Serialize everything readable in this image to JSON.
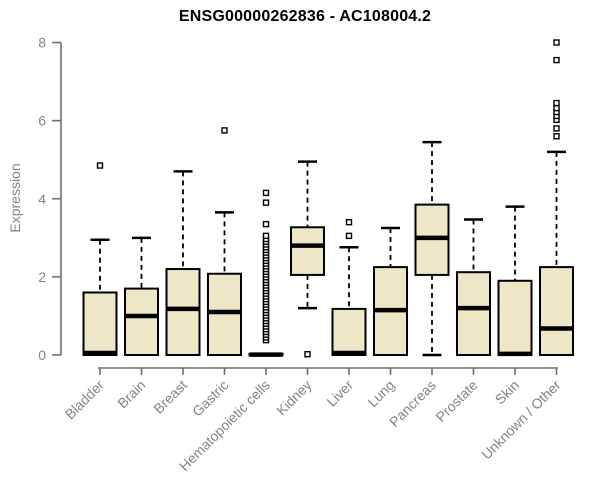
{
  "chart_data": {
    "type": "boxplot",
    "title": "ENSG00000262836 - AC108004.2",
    "ylabel": "Expression",
    "xlabel": "",
    "ylim": [
      0,
      8
    ],
    "yticks": [
      0,
      2,
      4,
      6,
      8
    ],
    "grid": false,
    "legend": "none",
    "colors": {
      "box_fill": "#EDE7C8",
      "box_stroke": "#000000",
      "whisker": "#000000",
      "median": "#000000",
      "outlier_fill": "#FFFFFF",
      "axis_line": "#6F6F6F",
      "tick_label": "#858585",
      "title": "#000000",
      "background": "#FFFFFF"
    },
    "categories": [
      "Bladder",
      "Brain",
      "Breast",
      "Gastric",
      "Hematopoietic cells",
      "Kidney",
      "Liver",
      "Lung",
      "Pancreas",
      "Prostate",
      "Skin",
      "Unknown / Other"
    ],
    "series": [
      {
        "category": "Bladder",
        "low": 0,
        "q1": 0,
        "median": 0.05,
        "q3": 1.6,
        "high": 2.95,
        "outliers": [
          4.85
        ]
      },
      {
        "category": "Brain",
        "low": 0,
        "q1": 0,
        "median": 1.0,
        "q3": 1.7,
        "high": 3.0,
        "outliers": []
      },
      {
        "category": "Breast",
        "low": 0,
        "q1": 0,
        "median": 1.18,
        "q3": 2.2,
        "high": 4.7,
        "outliers": []
      },
      {
        "category": "Gastric",
        "low": 0,
        "q1": 0,
        "median": 1.1,
        "q3": 2.08,
        "high": 3.65,
        "outliers": [
          5.75
        ]
      },
      {
        "category": "Hematopoietic cells",
        "low": 0,
        "q1": 0,
        "median": 0.01,
        "q3": 0.03,
        "high": 0.03,
        "outliers": [
          0.38,
          0.45,
          0.52,
          0.59,
          0.66,
          0.73,
          0.8,
          0.87,
          0.94,
          1.01,
          1.08,
          1.15,
          1.22,
          1.29,
          1.36,
          1.43,
          1.5,
          1.57,
          1.64,
          1.71,
          1.78,
          1.85,
          1.92,
          1.99,
          2.06,
          2.13,
          2.2,
          2.27,
          2.34,
          2.41,
          2.48,
          2.55,
          2.62,
          2.69,
          2.76,
          2.83,
          2.9,
          2.97,
          3.05,
          3.35,
          3.9,
          4.15
        ]
      },
      {
        "category": "Kidney",
        "low": 1.2,
        "q1": 2.05,
        "median": 2.8,
        "q3": 3.27,
        "high": 4.95,
        "outliers": [
          0.02
        ]
      },
      {
        "category": "Liver",
        "low": 0,
        "q1": 0,
        "median": 0.05,
        "q3": 1.18,
        "high": 2.76,
        "outliers": [
          3.05,
          3.4
        ]
      },
      {
        "category": "Lung",
        "low": 0,
        "q1": 0,
        "median": 1.15,
        "q3": 2.25,
        "high": 3.25,
        "outliers": []
      },
      {
        "category": "Pancreas",
        "low": 0,
        "q1": 2.05,
        "median": 3.0,
        "q3": 3.85,
        "high": 5.45,
        "outliers": []
      },
      {
        "category": "Prostate",
        "low": 0,
        "q1": 0,
        "median": 1.2,
        "q3": 2.12,
        "high": 3.47,
        "outliers": []
      },
      {
        "category": "Skin",
        "low": 0,
        "q1": 0,
        "median": 0.03,
        "q3": 1.9,
        "high": 3.8,
        "outliers": []
      },
      {
        "category": "Unknown / Other",
        "low": 0,
        "q1": 0,
        "median": 0.68,
        "q3": 2.25,
        "high": 5.2,
        "outliers": [
          5.6,
          5.8,
          6.02,
          6.12,
          6.22,
          6.32,
          6.45,
          7.55,
          8.0
        ]
      }
    ]
  }
}
